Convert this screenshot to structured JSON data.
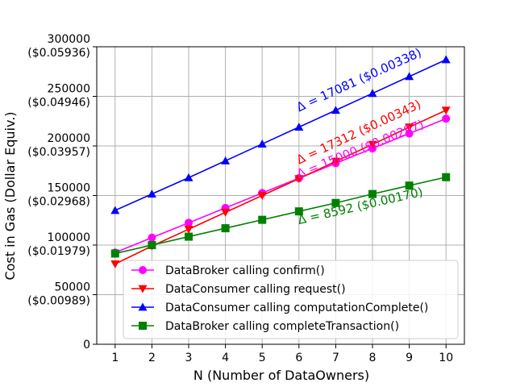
{
  "chart_data": {
    "type": "line",
    "xlabel": "N (Number of DataOwners)",
    "ylabel": "Cost in Gas (Dollar Equiv.)",
    "x": [
      1,
      2,
      3,
      4,
      5,
      6,
      7,
      8,
      9,
      10
    ],
    "xlim": [
      0.5,
      10.5
    ],
    "ylim": [
      0,
      300000
    ],
    "grid": true,
    "legend_position": "bottom-right",
    "x_ticks": [
      "1",
      "2",
      "3",
      "4",
      "5",
      "6",
      "7",
      "8",
      "9",
      "10"
    ],
    "y_ticks": [
      {
        "value": 0,
        "lines": [
          "0"
        ]
      },
      {
        "value": 50000,
        "lines": [
          "50000",
          "($0.00989)"
        ]
      },
      {
        "value": 100000,
        "lines": [
          "100000",
          "($0.01979)"
        ]
      },
      {
        "value": 150000,
        "lines": [
          "150000",
          "($0.02968)"
        ]
      },
      {
        "value": 200000,
        "lines": [
          "200000",
          "($0.03957)"
        ]
      },
      {
        "value": 250000,
        "lines": [
          "250000",
          "($0.04946)"
        ]
      },
      {
        "value": 300000,
        "lines": [
          "300000",
          "($0.05936)"
        ]
      }
    ],
    "series": [
      {
        "name": "DataBroker calling confirm()",
        "color": "#ff00ff",
        "marker": "circle",
        "values": [
          92500,
          107500,
          122500,
          137500,
          152500,
          167500,
          182500,
          197500,
          212500,
          227500
        ],
        "annotation": {
          "text": "Δ = 15000 ($0.00297)",
          "x_from": 6,
          "x_to": 9.4,
          "offset": 0
        }
      },
      {
        "name": "DataConsumer calling request()",
        "color": "#ff0000",
        "marker": "triangle-down",
        "values": [
          81000,
          99000,
          116000,
          133000,
          150000,
          167000,
          184500,
          201500,
          219000,
          236000
        ],
        "annotation": {
          "text": "Δ = 17312 ($0.00343)",
          "x_from": 6,
          "x_to": 9.4,
          "offset": 14500
        }
      },
      {
        "name": "DataConsumer calling computationComplete()",
        "color": "#0000ff",
        "marker": "triangle-up",
        "values": [
          135000,
          151500,
          168000,
          185000,
          202000,
          219000,
          236000,
          253000,
          270000,
          287000
        ],
        "annotation": {
          "text": "Δ = 17081 ($0.00338)",
          "x_from": 6,
          "x_to": 9.4,
          "offset": 15500
        }
      },
      {
        "name": "DataBroker calling completeTransaction()",
        "color": "#008000",
        "marker": "square",
        "values": [
          91500,
          100000,
          108500,
          117000,
          125500,
          134000,
          142500,
          151500,
          160000,
          168500
        ],
        "annotation": {
          "text": "Δ = 8592 ($0.00170)",
          "x_from": 6,
          "x_to": 9.4,
          "offset": -13000
        }
      }
    ]
  }
}
